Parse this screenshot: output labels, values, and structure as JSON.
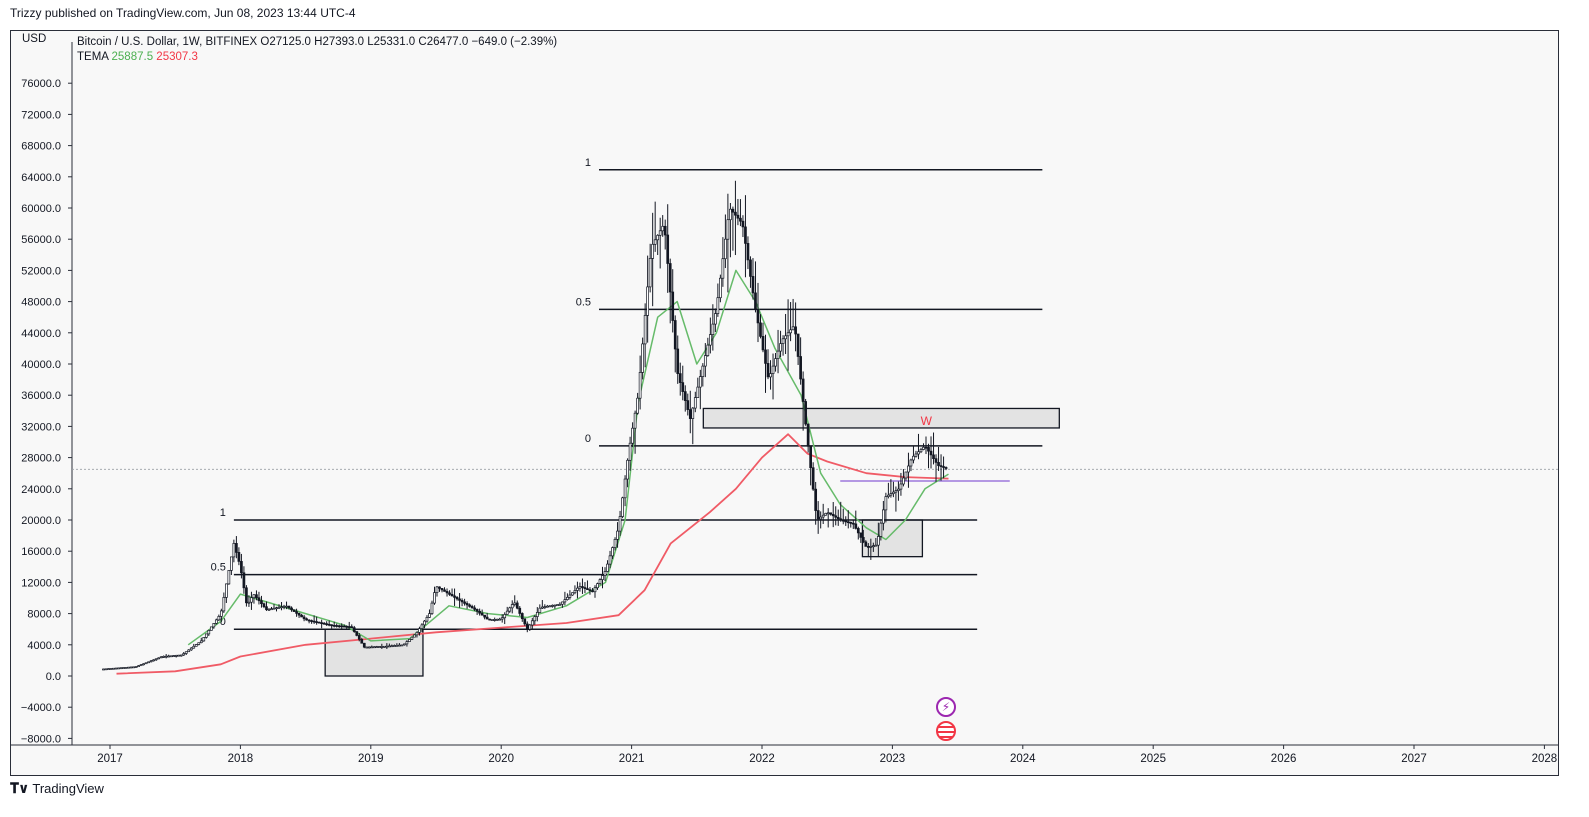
{
  "header": {
    "caption": "Trizzy published on TradingView.com, Jun 08, 2023 13:44 UTC-4"
  },
  "legend": {
    "symbol": "Bitcoin / U.S. Dollar, 1W, BITFINEX",
    "open": "O27125.0",
    "high": "H27393.0",
    "low": "L25331.0",
    "close": "C26477.0",
    "change": "−649.0 (−2.39%)",
    "indicator": "TEMA",
    "tema_fast": "25887.5",
    "tema_slow": "25307.3"
  },
  "axis": {
    "currency": "USD"
  },
  "footer": {
    "brand": "TradingView"
  },
  "colors": {
    "bull": "#131722",
    "tema_fast": "#66bb6a",
    "tema_slow": "#f05b66",
    "level": "#131722",
    "zone": "#d6d6d6",
    "hline": "#8c5fd6",
    "marker": "#f23645"
  },
  "chart_data": {
    "type": "candlestick",
    "xlabel": "",
    "ylabel": "",
    "ylim": [
      -8000,
      80000
    ],
    "y_ticks": [
      -8000,
      -4000,
      0,
      4000,
      8000,
      12000,
      16000,
      20000,
      24000,
      28000,
      32000,
      36000,
      40000,
      44000,
      48000,
      52000,
      56000,
      60000,
      64000,
      68000,
      72000,
      76000
    ],
    "y_tick_labels": [
      "−8000.0",
      "−4000.0",
      "0.0",
      "4000.0",
      "8000.0",
      "12000.0",
      "16000.0",
      "20000.0",
      "24000.0",
      "28000.0",
      "32000.0",
      "36000.0",
      "40000.0",
      "44000.0",
      "48000.0",
      "52000.0",
      "56000.0",
      "60000.0",
      "64000.0",
      "68000.0",
      "72000.0",
      "76000.0"
    ],
    "x_ticks": [
      "2017",
      "2018",
      "2019",
      "2020",
      "2021",
      "2022",
      "2023",
      "2024",
      "2025",
      "2026",
      "2027",
      "2028"
    ],
    "x_range": [
      2016.95,
      2028.4
    ],
    "price_series": {
      "name": "BTCUSD weekly",
      "x": [
        2016.95,
        2017.2,
        2017.4,
        2017.55,
        2017.7,
        2017.85,
        2017.95,
        2018.0,
        2018.05,
        2018.1,
        2018.2,
        2018.35,
        2018.5,
        2018.7,
        2018.85,
        2018.95,
        2019.1,
        2019.25,
        2019.35,
        2019.45,
        2019.5,
        2019.65,
        2019.8,
        2019.9,
        2020.0,
        2020.1,
        2020.2,
        2020.3,
        2020.45,
        2020.6,
        2020.7,
        2020.8,
        2020.9,
        2020.98,
        2021.05,
        2021.15,
        2021.25,
        2021.35,
        2021.45,
        2021.55,
        2021.65,
        2021.75,
        2021.85,
        2021.95,
        2022.05,
        2022.15,
        2022.25,
        2022.35,
        2022.42,
        2022.5,
        2022.6,
        2022.7,
        2022.8,
        2022.88,
        2022.95,
        2023.05,
        2023.15,
        2023.25,
        2023.35,
        2023.43
      ],
      "close": [
        900,
        1200,
        2500,
        2700,
        4500,
        8000,
        17000,
        14000,
        9000,
        10500,
        8500,
        9000,
        7200,
        6500,
        6300,
        3700,
        3800,
        4000,
        5500,
        8000,
        11500,
        10000,
        8500,
        7200,
        7300,
        9500,
        6000,
        8800,
        9200,
        11500,
        10800,
        13500,
        19000,
        29000,
        36000,
        55000,
        58000,
        39000,
        33000,
        40000,
        47000,
        60000,
        58000,
        47000,
        38000,
        43000,
        45000,
        30000,
        20000,
        21000,
        20000,
        19500,
        16500,
        16800,
        23000,
        24000,
        28000,
        29500,
        27000,
        26500
      ]
    },
    "tema_fast": {
      "name": "TEMA 25887.5",
      "x": [
        2017.6,
        2017.85,
        2018.0,
        2018.2,
        2018.5,
        2018.8,
        2019.0,
        2019.3,
        2019.6,
        2019.9,
        2020.2,
        2020.5,
        2020.8,
        2020.95,
        2021.05,
        2021.2,
        2021.35,
        2021.5,
        2021.65,
        2021.8,
        2021.95,
        2022.1,
        2022.3,
        2022.45,
        2022.6,
        2022.8,
        2022.95,
        2023.1,
        2023.25,
        2023.43
      ],
      "values": [
        4000,
        7000,
        10500,
        9500,
        8000,
        6500,
        4500,
        4800,
        9000,
        8000,
        7500,
        9000,
        12000,
        20000,
        35000,
        46000,
        48000,
        40000,
        44000,
        52000,
        48000,
        42000,
        36000,
        26000,
        22000,
        19000,
        17500,
        20000,
        24000,
        25887.5
      ]
    },
    "tema_slow": {
      "name": "TEMA 25307.3",
      "x": [
        2017.05,
        2017.5,
        2017.85,
        2018.0,
        2018.5,
        2019.0,
        2019.5,
        2020.0,
        2020.5,
        2020.9,
        2021.1,
        2021.3,
        2021.6,
        2021.8,
        2022.0,
        2022.2,
        2022.35,
        2022.5,
        2022.8,
        2023.1,
        2023.43
      ],
      "values": [
        300,
        600,
        1500,
        2500,
        4000,
        4800,
        5600,
        6200,
        6800,
        7800,
        11000,
        17000,
        21000,
        24000,
        28000,
        31000,
        28500,
        27500,
        26000,
        25500,
        25307.3
      ]
    },
    "fib_levels": [
      {
        "label": "1",
        "value": 20000,
        "x_from": 2017.95,
        "x_to": 2023.65
      },
      {
        "label": "0.5",
        "value": 13000,
        "x_from": 2017.95,
        "x_to": 2023.65
      },
      {
        "label": "0",
        "value": 6000,
        "x_from": 2017.95,
        "x_to": 2023.65
      },
      {
        "label": "1",
        "value": 64900,
        "x_from": 2020.75,
        "x_to": 2024.15
      },
      {
        "label": "0.5",
        "value": 47000,
        "x_from": 2020.75,
        "x_to": 2024.15
      },
      {
        "label": "0",
        "value": 29500,
        "x_from": 2020.75,
        "x_to": 2024.15
      }
    ],
    "zones": [
      {
        "x_from": 2018.65,
        "x_to": 2019.4,
        "y_from": 0,
        "y_to": 6000
      },
      {
        "x_from": 2021.55,
        "x_to": 2024.28,
        "y_from": 31800,
        "y_to": 34300
      },
      {
        "x_from": 2022.77,
        "x_to": 2023.23,
        "y_from": 15300,
        "y_to": 20000
      }
    ],
    "hline": {
      "value": 25000,
      "x_from": 2022.6,
      "x_to": 2023.9
    },
    "annotations": [
      {
        "text": "W",
        "x": 2023.26,
        "y": 32200
      }
    ]
  }
}
